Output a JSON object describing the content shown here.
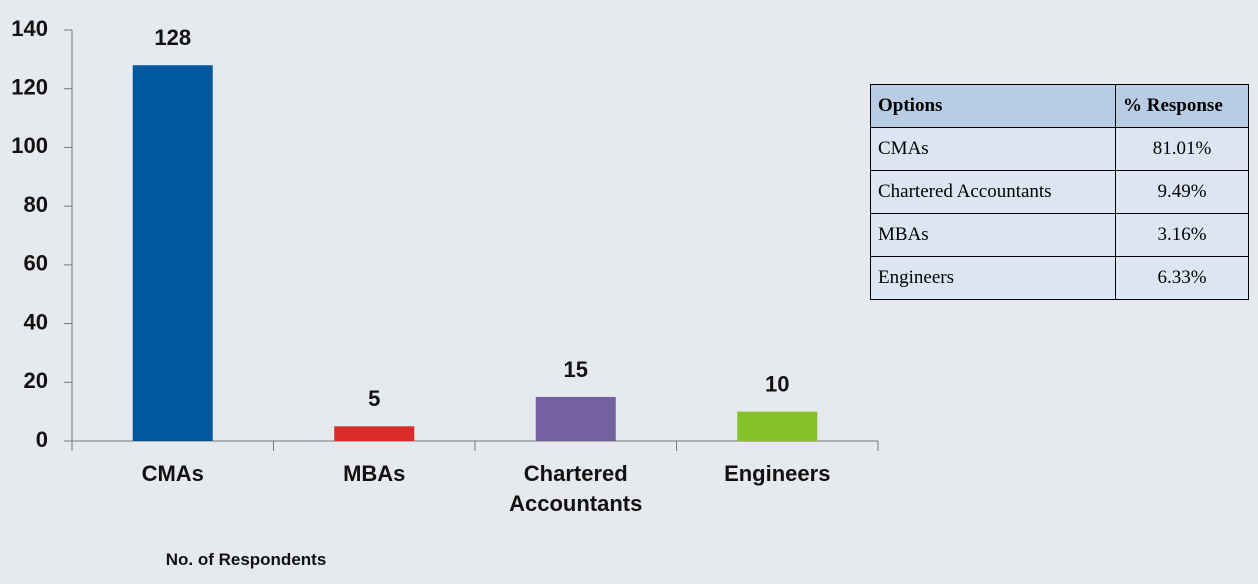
{
  "chart_data": {
    "type": "bar",
    "categories": [
      "CMAs",
      "MBAs",
      "Chartered Accountants",
      "Engineers"
    ],
    "values": [
      128,
      5,
      15,
      10
    ],
    "colors": [
      "#0058a0",
      "#d92b27",
      "#7461a0",
      "#84c12b"
    ],
    "ylim": [
      0,
      140
    ],
    "yticks": [
      0,
      20,
      40,
      60,
      80,
      100,
      120,
      140
    ],
    "xlabel": "No. of Respondents"
  },
  "table": {
    "header": [
      "Options",
      "% Response"
    ],
    "rows": [
      [
        "CMAs",
        "81.01%"
      ],
      [
        "Chartered Accountants",
        "9.49%"
      ],
      [
        "MBAs",
        "3.16%"
      ],
      [
        "Engineers",
        "6.33%"
      ]
    ]
  }
}
